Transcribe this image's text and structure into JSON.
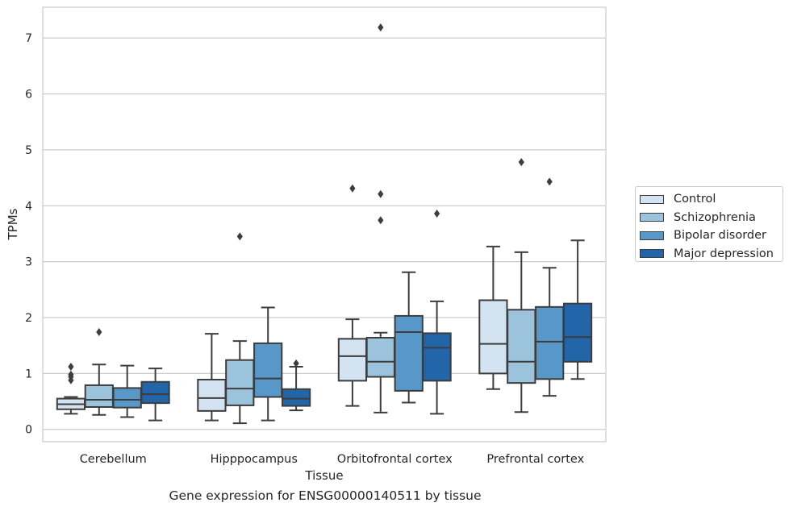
{
  "chart_data": {
    "type": "box",
    "xlabel": "Tissue",
    "ylabel": "TPMs",
    "categories": [
      "Cerebellum",
      "Hipppocampus",
      "Orbitofrontal cortex",
      "Prefrontal cortex"
    ],
    "ylim": [
      -0.22,
      7.55
    ],
    "yticks": [
      0,
      1,
      2,
      3,
      4,
      5,
      6,
      7
    ],
    "grid": "horizontal",
    "legend_position": "right",
    "series": [
      {
        "name": "Control",
        "color": "#d4e3f2",
        "boxes": [
          {
            "low": 0.28,
            "q1": 0.36,
            "median": 0.45,
            "q3": 0.55,
            "high": 0.58,
            "outliers": [
              0.88,
              0.94,
              0.98,
              1.12
            ]
          },
          {
            "low": 0.16,
            "q1": 0.33,
            "median": 0.56,
            "q3": 0.89,
            "high": 1.71,
            "outliers": []
          },
          {
            "low": 0.42,
            "q1": 0.87,
            "median": 1.31,
            "q3": 1.62,
            "high": 1.97,
            "outliers": [
              4.31
            ]
          },
          {
            "low": 0.72,
            "q1": 1.0,
            "median": 1.53,
            "q3": 2.31,
            "high": 3.27,
            "outliers": []
          }
        ]
      },
      {
        "name": "Schizophrenia",
        "color": "#9cc3dc",
        "boxes": [
          {
            "low": 0.26,
            "q1": 0.4,
            "median": 0.53,
            "q3": 0.79,
            "high": 1.16,
            "outliers": [
              1.74
            ]
          },
          {
            "low": 0.11,
            "q1": 0.43,
            "median": 0.73,
            "q3": 1.24,
            "high": 1.58,
            "outliers": [
              3.45
            ]
          },
          {
            "low": 0.3,
            "q1": 0.94,
            "median": 1.21,
            "q3": 1.64,
            "high": 1.73,
            "outliers": [
              3.74,
              4.21,
              7.19
            ]
          },
          {
            "low": 0.31,
            "q1": 0.83,
            "median": 1.21,
            "q3": 2.14,
            "high": 3.17,
            "outliers": [
              4.78
            ]
          }
        ]
      },
      {
        "name": "Bipolar disorder",
        "color": "#5898c9",
        "boxes": [
          {
            "low": 0.22,
            "q1": 0.39,
            "median": 0.53,
            "q3": 0.74,
            "high": 1.14,
            "outliers": []
          },
          {
            "low": 0.16,
            "q1": 0.58,
            "median": 0.91,
            "q3": 1.54,
            "high": 2.18,
            "outliers": []
          },
          {
            "low": 0.48,
            "q1": 0.69,
            "median": 1.74,
            "q3": 2.03,
            "high": 2.81,
            "outliers": []
          },
          {
            "low": 0.6,
            "q1": 0.9,
            "median": 1.57,
            "q3": 2.19,
            "high": 2.89,
            "outliers": [
              4.43
            ]
          }
        ]
      },
      {
        "name": "Major depression",
        "color": "#2265a9",
        "boxes": [
          {
            "low": 0.16,
            "q1": 0.47,
            "median": 0.63,
            "q3": 0.85,
            "high": 1.09,
            "outliers": []
          },
          {
            "low": 0.34,
            "q1": 0.42,
            "median": 0.55,
            "q3": 0.72,
            "high": 1.12,
            "outliers": [
              1.18
            ]
          },
          {
            "low": 0.28,
            "q1": 0.87,
            "median": 1.46,
            "q3": 1.72,
            "high": 2.29,
            "outliers": [
              3.86
            ]
          },
          {
            "low": 0.9,
            "q1": 1.21,
            "median": 1.65,
            "q3": 2.25,
            "high": 3.38,
            "outliers": []
          }
        ]
      }
    ]
  },
  "caption": "Gene expression for ENSG00000140511 by tissue"
}
